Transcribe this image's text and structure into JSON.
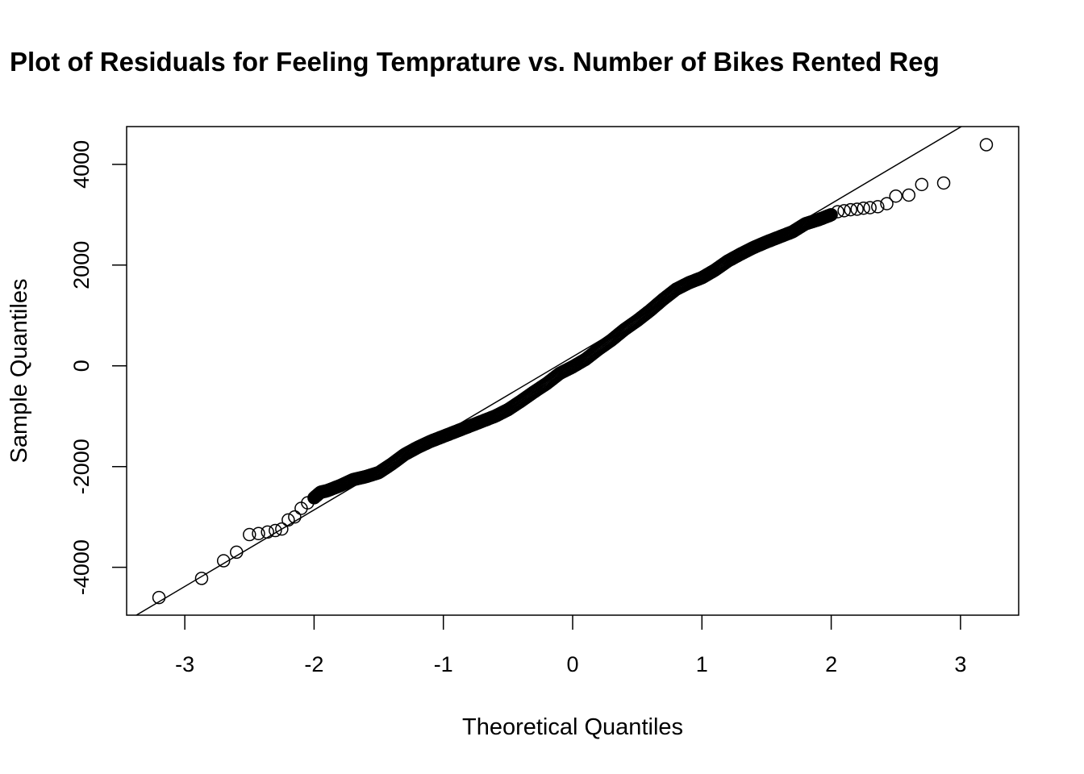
{
  "chart_data": {
    "type": "scatter",
    "title": "Plot of Residuals for Feeling Temprature vs. Number of Bikes Rented Reg",
    "xlabel": "Theoretical Quantiles",
    "ylabel": "Sample Quantiles",
    "xlim": [
      -3.45,
      3.45
    ],
    "ylim": [
      -4950,
      4750
    ],
    "x_ticks": [
      -3,
      -2,
      -1,
      0,
      1,
      2,
      3
    ],
    "y_ticks": [
      -4000,
      -2000,
      0,
      2000,
      4000
    ],
    "grid": false,
    "legend": "none",
    "reference_line": {
      "intercept": 180,
      "slope": 1520
    },
    "marker": "open-circle",
    "points": {
      "x": [
        -3.2,
        -2.87,
        -2.7,
        -2.6,
        -2.5,
        -2.43,
        -2.36,
        -2.3,
        -2.25,
        -2.2,
        -2.15,
        -2.1,
        -2.05,
        -2.0,
        -1.95,
        -1.9,
        -1.8,
        -1.7,
        -1.6,
        -1.5,
        -1.4,
        -1.3,
        -1.2,
        -1.1,
        -1.0,
        -0.9,
        -0.8,
        -0.7,
        -0.6,
        -0.5,
        -0.4,
        -0.3,
        -0.2,
        -0.1,
        0.0,
        0.1,
        0.2,
        0.3,
        0.4,
        0.5,
        0.6,
        0.7,
        0.8,
        0.9,
        1.0,
        1.1,
        1.2,
        1.3,
        1.4,
        1.5,
        1.6,
        1.7,
        1.8,
        1.9,
        1.95,
        2.0,
        2.05,
        2.1,
        2.15,
        2.2,
        2.25,
        2.3,
        2.36,
        2.43,
        2.5,
        2.6,
        2.7,
        2.87,
        3.2
      ],
      "y": [
        -4600,
        -4220,
        -3870,
        -3700,
        -3350,
        -3330,
        -3300,
        -3270,
        -3240,
        -3060,
        -3000,
        -2830,
        -2720,
        -2620,
        -2510,
        -2480,
        -2380,
        -2260,
        -2200,
        -2120,
        -1950,
        -1760,
        -1620,
        -1500,
        -1400,
        -1300,
        -1200,
        -1100,
        -1000,
        -870,
        -700,
        -520,
        -350,
        -150,
        -20,
        130,
        330,
        510,
        720,
        900,
        1100,
        1320,
        1520,
        1650,
        1750,
        1900,
        2080,
        2220,
        2350,
        2460,
        2560,
        2660,
        2820,
        2900,
        2950,
        3000,
        3060,
        3080,
        3100,
        3110,
        3130,
        3140,
        3160,
        3220,
        3370,
        3390,
        3600,
        3630,
        4390
      ]
    }
  }
}
